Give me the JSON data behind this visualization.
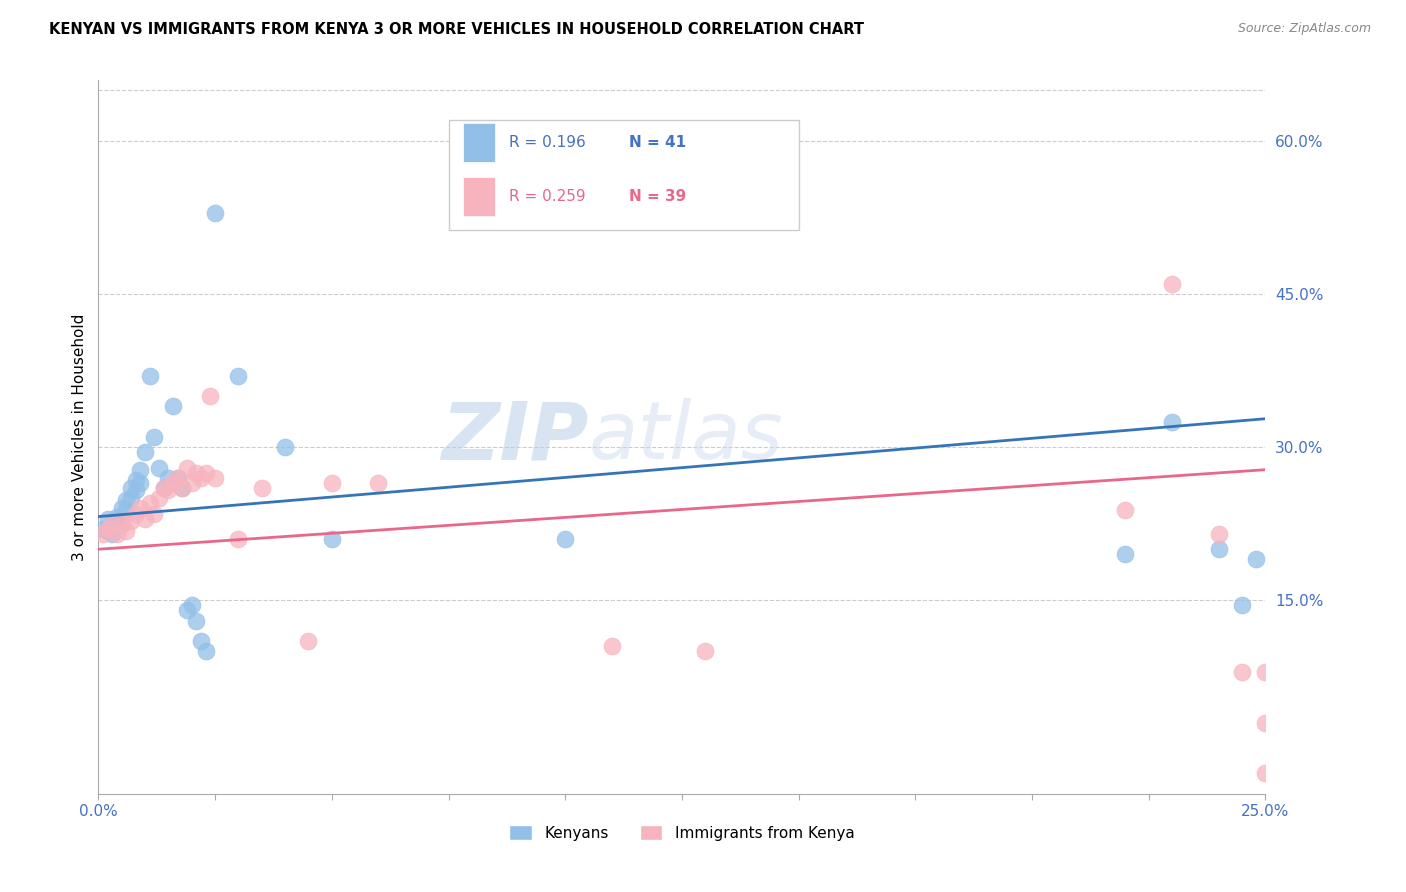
{
  "title": "KENYAN VS IMMIGRANTS FROM KENYA 3 OR MORE VEHICLES IN HOUSEHOLD CORRELATION CHART",
  "source": "Source: ZipAtlas.com",
  "ylabel": "3 or more Vehicles in Household",
  "xlim": [
    0.0,
    0.25
  ],
  "ylim": [
    -0.04,
    0.66
  ],
  "xticks": [
    0.0,
    0.025,
    0.05,
    0.075,
    0.1,
    0.125,
    0.15,
    0.175,
    0.2,
    0.225,
    0.25
  ],
  "xtick_labels_show": [
    "0.0%",
    "",
    "",
    "",
    "",
    "",
    "",
    "",
    "",
    "",
    "25.0%"
  ],
  "yticks": [
    0.15,
    0.3,
    0.45,
    0.6
  ],
  "ytick_labels": [
    "15.0%",
    "30.0%",
    "45.0%",
    "60.0%"
  ],
  "legend_R_blue": "R = 0.196",
  "legend_N_blue": "N = 41",
  "legend_R_pink": "R = 0.259",
  "legend_N_pink": "N = 39",
  "blue_color": "#92bfe8",
  "pink_color": "#f7b3be",
  "line_blue_color": "#3474b7",
  "line_pink_color": "#e8678a",
  "watermark_zip": "ZIP",
  "watermark_atlas": "atlas",
  "kenyans_x": [
    0.001,
    0.002,
    0.002,
    0.003,
    0.003,
    0.004,
    0.004,
    0.005,
    0.005,
    0.006,
    0.006,
    0.007,
    0.007,
    0.008,
    0.008,
    0.009,
    0.009,
    0.01,
    0.011,
    0.012,
    0.013,
    0.014,
    0.015,
    0.016,
    0.017,
    0.018,
    0.019,
    0.02,
    0.021,
    0.022,
    0.023,
    0.025,
    0.03,
    0.04,
    0.05,
    0.1,
    0.22,
    0.23,
    0.24,
    0.245,
    0.248
  ],
  "kenyans_y": [
    0.22,
    0.218,
    0.23,
    0.215,
    0.225,
    0.228,
    0.232,
    0.225,
    0.24,
    0.238,
    0.248,
    0.25,
    0.26,
    0.258,
    0.268,
    0.265,
    0.278,
    0.295,
    0.37,
    0.31,
    0.28,
    0.26,
    0.27,
    0.34,
    0.27,
    0.26,
    0.14,
    0.145,
    0.13,
    0.11,
    0.1,
    0.53,
    0.37,
    0.3,
    0.21,
    0.21,
    0.195,
    0.325,
    0.2,
    0.145,
    0.19
  ],
  "immigrants_x": [
    0.001,
    0.002,
    0.003,
    0.004,
    0.005,
    0.006,
    0.007,
    0.008,
    0.009,
    0.01,
    0.011,
    0.012,
    0.013,
    0.014,
    0.015,
    0.016,
    0.017,
    0.018,
    0.019,
    0.02,
    0.021,
    0.022,
    0.023,
    0.024,
    0.025,
    0.03,
    0.035,
    0.045,
    0.05,
    0.06,
    0.11,
    0.13,
    0.22,
    0.23,
    0.24,
    0.245,
    0.25,
    0.25,
    0.25
  ],
  "immigrants_y": [
    0.215,
    0.22,
    0.225,
    0.215,
    0.225,
    0.218,
    0.228,
    0.235,
    0.24,
    0.23,
    0.245,
    0.235,
    0.25,
    0.26,
    0.258,
    0.265,
    0.27,
    0.26,
    0.28,
    0.265,
    0.275,
    0.27,
    0.275,
    0.35,
    0.27,
    0.21,
    0.26,
    0.11,
    0.265,
    0.265,
    0.105,
    0.1,
    0.238,
    0.46,
    0.215,
    0.08,
    0.08,
    0.03,
    -0.02
  ],
  "blue_line_x": [
    0.0,
    0.25
  ],
  "blue_line_y": [
    0.232,
    0.328
  ],
  "pink_line_x": [
    0.0,
    0.25
  ],
  "pink_line_y": [
    0.2,
    0.278
  ]
}
